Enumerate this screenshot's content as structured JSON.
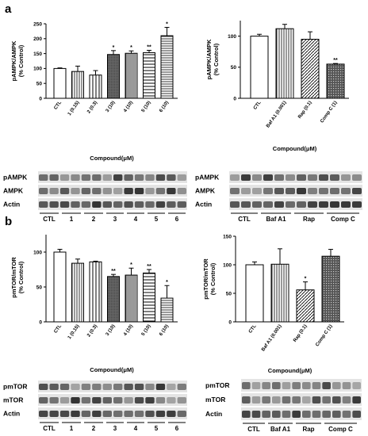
{
  "panel_letters": [
    "a",
    "b"
  ],
  "chart_data": [
    {
      "type": "bar",
      "ylabel": "pAMPK/AMPK\n(% Control)",
      "xlabel": "Compound(μM)",
      "ylim": [
        0,
        250
      ],
      "yticks": [
        "0",
        "50",
        "100",
        "150",
        "200",
        "250"
      ],
      "categories": [
        "CTL",
        "1 (0.15)",
        "2 (0.3)",
        "3 (10)",
        "4 (10)",
        "5 (10)",
        "6 (10)"
      ],
      "values": [
        100,
        90,
        78,
        147,
        151,
        153,
        210
      ],
      "errors": [
        2,
        18,
        15,
        13,
        8,
        8,
        28
      ],
      "significance": [
        "",
        "",
        "",
        "*",
        "*",
        "**",
        "*"
      ],
      "patterns": [
        "white",
        "vlines",
        "vlines-wide",
        "dark",
        "vlines-tight",
        "hlines-wide",
        "hlines"
      ]
    },
    {
      "type": "bar",
      "ylabel": "pAMPK/AMPK\n(% Control)",
      "xlabel": "Compound(μM)",
      "ylim": [
        0,
        125
      ],
      "yticks": [
        "0",
        "50",
        "100"
      ],
      "categories": [
        "CTL",
        "Baf A1 (0.001)",
        "Rap (0.1)",
        "Comp C (1)"
      ],
      "values": [
        100,
        112,
        95,
        55
      ],
      "errors": [
        3,
        7,
        12,
        1
      ],
      "significance": [
        "",
        "",
        "",
        "**"
      ],
      "patterns": [
        "white",
        "vlines",
        "diag",
        "dots-dark"
      ]
    },
    {
      "type": "bar",
      "ylabel": "pmTOR/mTOR\n(% Control)",
      "xlabel": "Compound(μM)",
      "ylim": [
        0,
        125
      ],
      "yticks": [
        "0",
        "50",
        "100"
      ],
      "categories": [
        "CTL",
        "1 (0.15)",
        "2 (0.3)",
        "3 (10)",
        "4 (10)",
        "5 (10)",
        "6 (10)"
      ],
      "values": [
        100,
        84,
        86,
        65,
        67,
        70,
        34
      ],
      "errors": [
        4,
        6,
        1,
        3,
        10,
        5,
        18
      ],
      "significance": [
        "",
        "",
        "",
        "**",
        "*",
        "**",
        "*"
      ],
      "patterns": [
        "white",
        "vlines",
        "vlines-wide",
        "dark",
        "vlines-tight",
        "hlines-wide",
        "hlines"
      ]
    },
    {
      "type": "bar",
      "ylabel": "pmTOR/mTOR\n(% Control)",
      "xlabel": "Compound(μM)",
      "ylim": [
        0,
        150
      ],
      "yticks": [
        "0",
        "50",
        "100",
        "150"
      ],
      "categories": [
        "CTL",
        "Baf A1 (0.001)",
        "Rap (0.1)",
        "Comp C (1)"
      ],
      "values": [
        100,
        101,
        56,
        115
      ],
      "errors": [
        5,
        27,
        14,
        12
      ],
      "significance": [
        "",
        "",
        "*",
        ""
      ],
      "patterns": [
        "white",
        "vlines",
        "diag",
        "dots-dark"
      ]
    }
  ],
  "blots": [
    {
      "rows": [
        "pAMPK",
        "AMPK",
        "Actin"
      ],
      "lanes": [
        "CTL",
        "1",
        "2",
        "3",
        "4",
        "5",
        "6"
      ]
    },
    {
      "rows": [
        "pAMPK",
        "AMPK",
        "Actin"
      ],
      "lanes": [
        "CTL",
        "Baf A1",
        "Rap",
        "Comp C"
      ]
    },
    {
      "rows": [
        "pmTOR",
        "mTOR",
        "Actin"
      ],
      "lanes": [
        "CTL",
        "1",
        "2",
        "3",
        "4",
        "5",
        "6"
      ]
    },
    {
      "rows": [
        "pmTOR",
        "mTOR",
        "Actin"
      ],
      "lanes": [
        "CTL",
        "Baf A1",
        "Rap",
        "Comp C"
      ]
    }
  ]
}
